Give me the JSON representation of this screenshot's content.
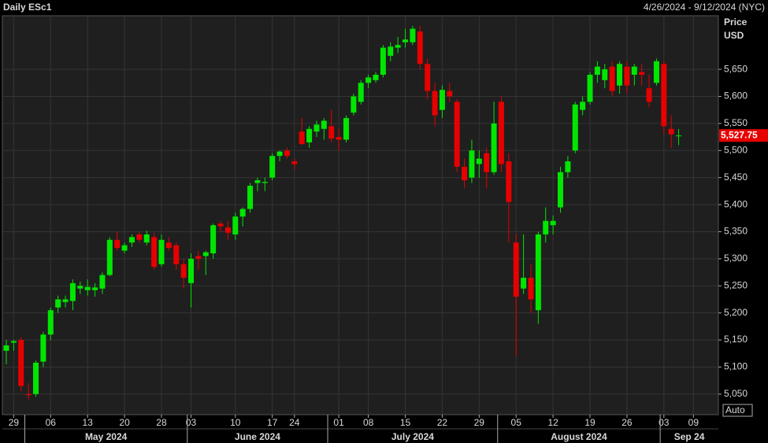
{
  "chart_data": {
    "type": "candlestick",
    "title": "Daily ESc1",
    "date_range": "4/26/2024 - 9/12/2024 (NYC)",
    "y_axis_title": "Price",
    "y_axis_unit": "USD",
    "scale_mode": "Auto",
    "up_color": "#00e600",
    "down_color": "#e60000",
    "grid": true,
    "ylim": [
      5012,
      5749
    ],
    "yticks": [
      {
        "value": 5050,
        "label": "5,050"
      },
      {
        "value": 5100,
        "label": "5,100"
      },
      {
        "value": 5150,
        "label": "5,150"
      },
      {
        "value": 5200,
        "label": "5,200"
      },
      {
        "value": 5250,
        "label": "5,250"
      },
      {
        "value": 5300,
        "label": "5,300"
      },
      {
        "value": 5350,
        "label": "5,350"
      },
      {
        "value": 5400,
        "label": "5,400"
      },
      {
        "value": 5450,
        "label": "5,450"
      },
      {
        "value": 5500,
        "label": "5,500"
      },
      {
        "value": 5550,
        "label": "5,550"
      },
      {
        "value": 5600,
        "label": "5,600"
      },
      {
        "value": 5650,
        "label": "5,650"
      }
    ],
    "xticks": [
      {
        "value": 1,
        "label": "29"
      },
      {
        "value": 6,
        "label": "06"
      },
      {
        "value": 11,
        "label": "13"
      },
      {
        "value": 16,
        "label": "20"
      },
      {
        "value": 21,
        "label": "28"
      },
      {
        "value": 25,
        "label": "03"
      },
      {
        "value": 31,
        "label": "10"
      },
      {
        "value": 36,
        "label": "17"
      },
      {
        "value": 39,
        "label": "24"
      },
      {
        "value": 45,
        "label": "01"
      },
      {
        "value": 49,
        "label": "08"
      },
      {
        "value": 54,
        "label": "15"
      },
      {
        "value": 59,
        "label": "22"
      },
      {
        "value": 64,
        "label": "29"
      },
      {
        "value": 69,
        "label": "05"
      },
      {
        "value": 74,
        "label": "12"
      },
      {
        "value": 79,
        "label": "19"
      },
      {
        "value": 84,
        "label": "26"
      },
      {
        "value": 89,
        "label": "03"
      },
      {
        "value": 93,
        "label": "09"
      }
    ],
    "months": [
      {
        "label": "May 2024",
        "start": 3
      },
      {
        "label": "June 2024",
        "start": 25
      },
      {
        "label": "July 2024",
        "start": 44
      },
      {
        "label": "August 2024",
        "start": 67
      },
      {
        "label": "Sep 24",
        "start": 89
      }
    ],
    "last_price": {
      "value": 5527.75,
      "label": "5,527.75"
    },
    "open": [
      5130,
      5145,
      5150,
      5050,
      5050,
      5110,
      5160,
      5210,
      5220,
      5222,
      5245,
      5242,
      5242,
      5245,
      5270,
      5335,
      5315,
      5330,
      5345,
      5330,
      5340,
      5290,
      5330,
      5325,
      5290,
      5255,
      5305,
      5305,
      5310,
      5365,
      5358,
      5345,
      5378,
      5392,
      5440,
      5440,
      5450,
      5490,
      5500,
      5480,
      5535,
      5515,
      5535,
      5540,
      5545,
      5525,
      5520,
      5570,
      5590,
      5625,
      5630,
      5640,
      5675,
      5690,
      5700,
      5700,
      5720,
      5660,
      5610,
      5575,
      5610,
      5590,
      5470,
      5450,
      5475,
      5495,
      5460,
      5590,
      5480,
      5330,
      5245,
      5265,
      5205,
      5345,
      5362,
      5395,
      5460,
      5500,
      5575,
      5590,
      5640,
      5630,
      5655,
      5620,
      5655,
      5640,
      5645,
      5615,
      5625,
      5660,
      5540,
      5527.75
    ],
    "high": [
      5150,
      5150,
      5155,
      5070,
      5112,
      5165,
      5210,
      5232,
      5232,
      5262,
      5258,
      5262,
      5255,
      5275,
      5340,
      5350,
      5330,
      5345,
      5350,
      5352,
      5348,
      5345,
      5340,
      5330,
      5300,
      5310,
      5315,
      5315,
      5365,
      5370,
      5370,
      5385,
      5395,
      5440,
      5450,
      5450,
      5495,
      5500,
      5505,
      5485,
      5560,
      5545,
      5555,
      5560,
      5575,
      5540,
      5565,
      5605,
      5630,
      5640,
      5645,
      5695,
      5700,
      5710,
      5725,
      5730,
      5730,
      5670,
      5625,
      5620,
      5625,
      5595,
      5485,
      5520,
      5500,
      5505,
      5590,
      5600,
      5495,
      5345,
      5345,
      5290,
      5350,
      5395,
      5380,
      5470,
      5490,
      5590,
      5600,
      5645,
      5665,
      5660,
      5665,
      5665,
      5665,
      5660,
      5660,
      5640,
      5670,
      5665,
      5565,
      5540
    ],
    "low": [
      5105,
      5130,
      5055,
      5040,
      5045,
      5100,
      5150,
      5200,
      5210,
      5205,
      5235,
      5232,
      5230,
      5235,
      5268,
      5315,
      5310,
      5322,
      5330,
      5325,
      5280,
      5285,
      5315,
      5280,
      5245,
      5210,
      5280,
      5270,
      5300,
      5350,
      5335,
      5335,
      5360,
      5385,
      5425,
      5425,
      5445,
      5480,
      5485,
      5465,
      5510,
      5505,
      5525,
      5520,
      5515,
      5500,
      5515,
      5565,
      5585,
      5615,
      5625,
      5635,
      5665,
      5680,
      5690,
      5695,
      5650,
      5595,
      5545,
      5560,
      5590,
      5460,
      5430,
      5440,
      5450,
      5430,
      5455,
      5460,
      5330,
      5120,
      5235,
      5200,
      5180,
      5330,
      5345,
      5385,
      5450,
      5495,
      5565,
      5585,
      5625,
      5615,
      5600,
      5605,
      5605,
      5620,
      5620,
      5580,
      5620,
      5530,
      5505,
      5510
    ],
    "close": [
      5140,
      5148,
      5065,
      5048,
      5108,
      5160,
      5205,
      5225,
      5225,
      5255,
      5250,
      5248,
      5247,
      5270,
      5335,
      5320,
      5325,
      5340,
      5335,
      5345,
      5285,
      5335,
      5320,
      5290,
      5265,
      5300,
      5300,
      5312,
      5362,
      5360,
      5348,
      5378,
      5392,
      5435,
      5445,
      5442,
      5490,
      5498,
      5490,
      5475,
      5512,
      5540,
      5548,
      5555,
      5522,
      5520,
      5560,
      5600,
      5625,
      5635,
      5640,
      5690,
      5692,
      5695,
      5705,
      5725,
      5660,
      5610,
      5565,
      5612,
      5600,
      5470,
      5445,
      5500,
      5485,
      5460,
      5550,
      5475,
      5405,
      5230,
      5265,
      5225,
      5345,
      5370,
      5370,
      5460,
      5480,
      5585,
      5590,
      5640,
      5655,
      5650,
      5610,
      5660,
      5620,
      5655,
      5640,
      5590,
      5665,
      5545,
      5530,
      5527.75
    ]
  }
}
